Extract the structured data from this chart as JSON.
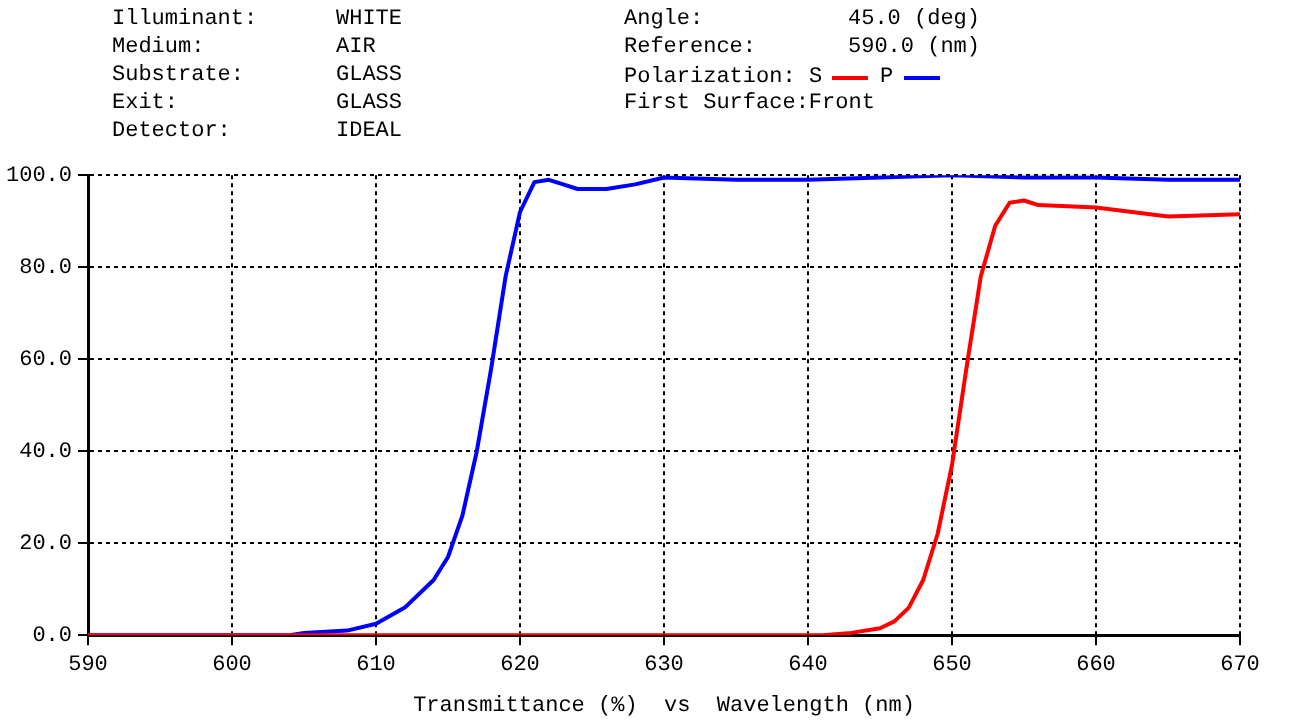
{
  "chart_data": {
    "type": "line",
    "xlabel": "Transmittance (%)  vs  Wavelength (nm)",
    "legend_title": "Polarization:",
    "legend": "top",
    "grid": true,
    "line_style": "solid",
    "marker": "none",
    "annotations": [
      "Illuminant: WHITE",
      "Medium: AIR",
      "Substrate: GLASS",
      "Exit: GLASS",
      "Detector: IDEAL",
      "Angle: 45.0 (deg)",
      "Reference: 590.0 (nm)",
      "First Surface:Front"
    ],
    "xlim": [
      590,
      670
    ],
    "xticks": [
      590,
      600,
      610,
      620,
      630,
      640,
      650,
      660,
      670
    ],
    "ylim": [
      0,
      100
    ],
    "yticks": [
      {
        "value": 0,
        "label": "0.0"
      },
      {
        "value": 20,
        "label": "20.0"
      },
      {
        "value": 40,
        "label": "40.0"
      },
      {
        "value": 60,
        "label": "60.0"
      },
      {
        "value": 80,
        "label": "80.0"
      },
      {
        "value": 100,
        "label": "100.0"
      }
    ],
    "series": [
      {
        "name": "S",
        "color": "#ff0000",
        "x": [
          590,
          600,
          610,
          620,
          630,
          640,
          641,
          643,
          645,
          646,
          647,
          648,
          649,
          650,
          651,
          652,
          653,
          654,
          655,
          656,
          660,
          665,
          670
        ],
        "values": [
          0,
          0,
          0,
          0,
          0,
          0,
          0,
          0.5,
          1.5,
          3,
          6,
          12,
          22,
          37,
          58,
          78,
          89,
          94,
          94.5,
          93.5,
          93,
          91,
          91.5
        ]
      },
      {
        "name": "P",
        "color": "#0000ff",
        "x": [
          590,
          600,
          604,
          605,
          608,
          610,
          612,
          614,
          615,
          616,
          617,
          618,
          619,
          620,
          621,
          622,
          623,
          624,
          626,
          628,
          630,
          635,
          640,
          645,
          650,
          655,
          660,
          665,
          670
        ],
        "values": [
          0,
          0,
          0,
          0.5,
          1,
          2.5,
          6,
          12,
          17,
          26,
          40,
          58,
          78,
          92,
          98.5,
          99,
          98,
          97,
          97,
          98,
          99.5,
          99,
          99,
          99.5,
          100,
          99.5,
          99.5,
          99,
          99
        ]
      }
    ]
  }
}
